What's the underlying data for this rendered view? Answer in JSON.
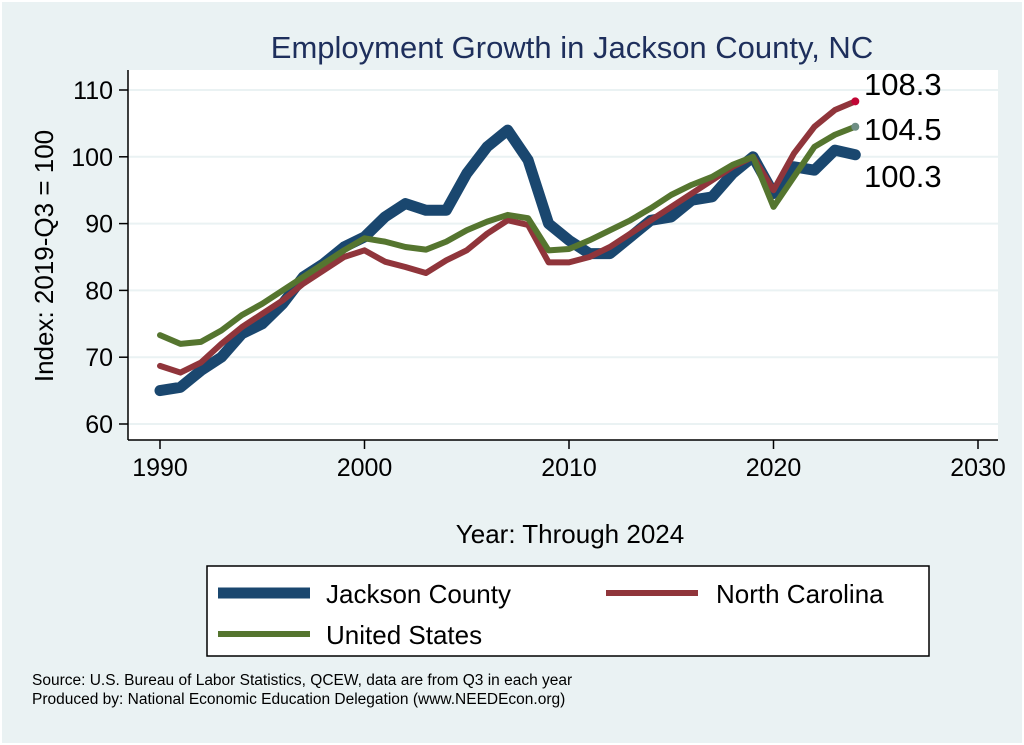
{
  "chart_data": {
    "type": "line",
    "title": "Employment Growth in Jackson County, NC",
    "xlabel": "Year: Through 2024",
    "ylabel": "Index: 2019-Q3 = 100",
    "xlim": [
      1990,
      2030
    ],
    "ylim": [
      60,
      110
    ],
    "xticks": [
      1990,
      2000,
      2010,
      2020,
      2030
    ],
    "yticks": [
      60,
      70,
      80,
      90,
      100,
      110
    ],
    "grid": true,
    "legend_placement": "bottom",
    "x": [
      1990,
      1991,
      1992,
      1993,
      1994,
      1995,
      1996,
      1997,
      1998,
      1999,
      2000,
      2001,
      2002,
      2003,
      2004,
      2005,
      2006,
      2007,
      2008,
      2009,
      2010,
      2011,
      2012,
      2013,
      2014,
      2015,
      2016,
      2017,
      2018,
      2019,
      2020,
      2021,
      2022,
      2023,
      2024
    ],
    "series": [
      {
        "name": "Jackson  County",
        "color": "#1a476f",
        "values": [
          65,
          65.5,
          68,
          70,
          73.5,
          75,
          78,
          82,
          84,
          86.5,
          88,
          91,
          93,
          92,
          92,
          97.5,
          101.5,
          104,
          99.5,
          90,
          87.5,
          85.5,
          85.5,
          88,
          90.5,
          91,
          93.5,
          94,
          97.5,
          100,
          94.5,
          98.5,
          98,
          101,
          100.3
        ]
      },
      {
        "name": "North Carolina",
        "color": "#90353b",
        "values": [
          68.7,
          67.7,
          69.2,
          72,
          74.5,
          76.5,
          78.5,
          81,
          83,
          85,
          86,
          84.3,
          83.5,
          82.6,
          84.5,
          86,
          88.5,
          90.5,
          89.8,
          84.2,
          84.2,
          85,
          86.5,
          88.5,
          90.5,
          92.5,
          94.5,
          96.5,
          98.5,
          100,
          95,
          100.5,
          104.5,
          107,
          108.3
        ]
      },
      {
        "name": "United States",
        "color": "#55752f",
        "values": [
          73.3,
          72,
          72.3,
          74,
          76.3,
          78,
          80,
          82,
          84,
          86,
          87.8,
          87.3,
          86.5,
          86.1,
          87.3,
          89,
          90.3,
          91.3,
          90.8,
          86,
          86.2,
          87.5,
          89,
          90.5,
          92.3,
          94.3,
          95.8,
          97,
          98.8,
          100,
          92.5,
          97,
          101.5,
          103.3,
          104.5
        ]
      }
    ],
    "end_labels": [
      "108.3",
      "104.5",
      "100.3"
    ],
    "end_marker_colors": [
      "#c10534",
      "#6e8e84"
    ]
  },
  "footer": {
    "source": "Source: U.S. Bureau of Labor Statistics, QCEW, data are from Q3 in each year",
    "produced": "Produced by: National Economic Education Delegation (www.NEEDEcon.org)"
  }
}
